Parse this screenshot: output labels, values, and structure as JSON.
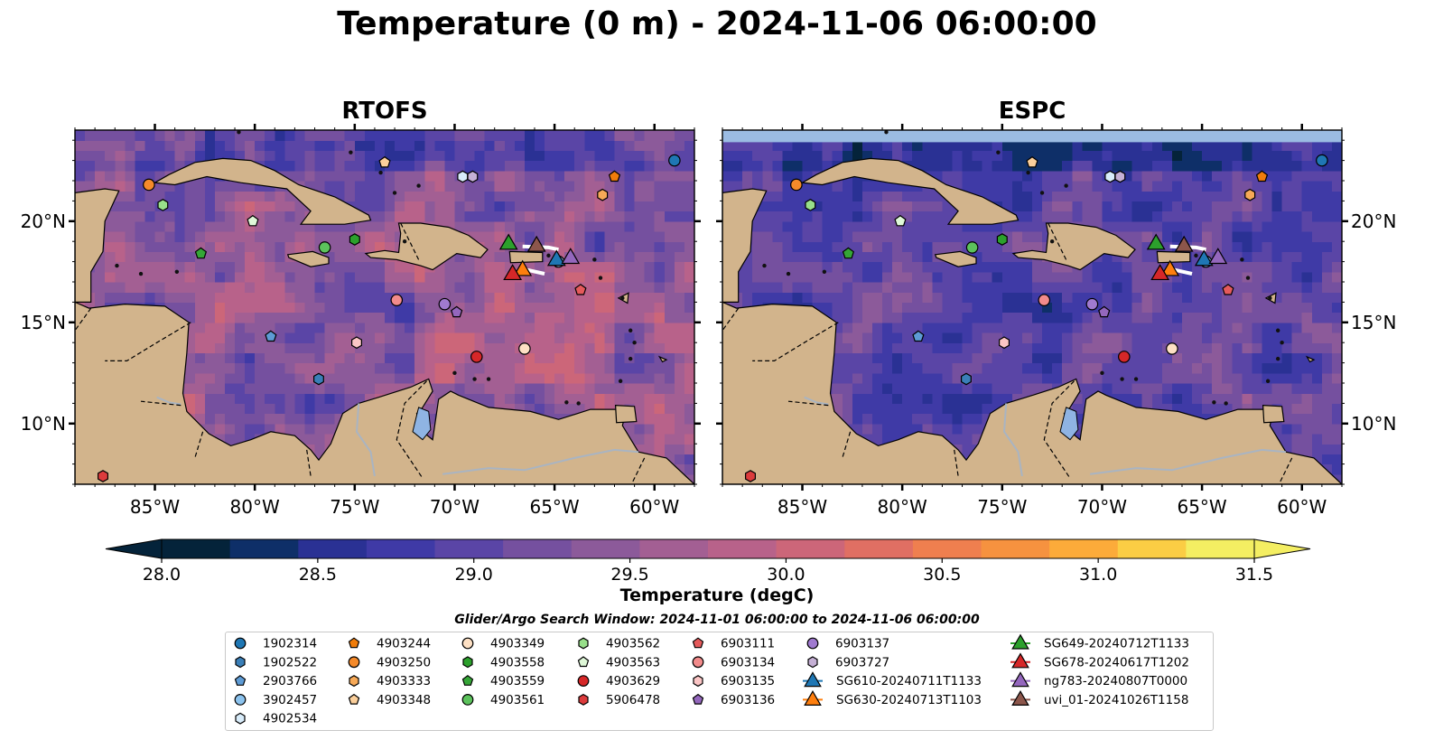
{
  "title": "Temperature (0 m) - 2024-11-06 06:00:00",
  "colors": {
    "land": "#d2b48c",
    "lake": "#8fb4e3",
    "river": "#a9b4c2",
    "nodata": "#9bbce3",
    "colormap_thermal": [
      "#04233a",
      "#0e2f68",
      "#2a3194",
      "#3f3aa6",
      "#5a45a6",
      "#75509f",
      "#8c5a9a",
      "#a35f93",
      "#b8628a",
      "#cc6679",
      "#e06f63",
      "#ef7f4f",
      "#f6923f",
      "#fcab3a",
      "#fbcd44",
      "#f4ee62"
    ]
  },
  "chart_data": [
    {
      "type": "heatmap",
      "title": "RTOFS",
      "field": "sea surface temperature",
      "xlim": [
        -89,
        -58
      ],
      "ylim": [
        7,
        24.5
      ],
      "xticks": [
        -85,
        -80,
        -75,
        -70,
        -65,
        -60
      ],
      "xtick_labels": [
        "85°W",
        "80°W",
        "75°W",
        "70°W",
        "65°W",
        "60°W"
      ],
      "yticks": [
        10,
        15,
        20
      ],
      "ytick_labels": [
        "10°N",
        "15°N",
        "20°N"
      ],
      "ytick_side": "left"
    },
    {
      "type": "heatmap",
      "title": "ESPC",
      "field": "sea surface temperature",
      "xlim": [
        -89,
        -58
      ],
      "ylim": [
        7,
        24.5
      ],
      "xticks": [
        -85,
        -80,
        -75,
        -70,
        -65,
        -60
      ],
      "xtick_labels": [
        "85°W",
        "80°W",
        "75°W",
        "70°W",
        "65°W",
        "60°W"
      ],
      "yticks": [
        10,
        15,
        20
      ],
      "ytick_labels": [
        "10°N",
        "15°N",
        "20°N"
      ],
      "ytick_side": "right"
    }
  ],
  "colorbar": {
    "label": "Temperature (degC)",
    "vmin": 28.0,
    "vmax": 31.5,
    "extend": "both",
    "ticks": [
      28.0,
      28.5,
      29.0,
      29.5,
      30.0,
      30.5,
      31.0,
      31.5
    ],
    "tick_labels": [
      "28.0",
      "28.5",
      "29.0",
      "29.5",
      "30.0",
      "30.5",
      "31.0",
      "31.5"
    ]
  },
  "legend": {
    "title": "Glider/Argo Search Window: 2024-11-01 06:00:00 to 2024-11-06 06:00:00",
    "placement": "bottom-center",
    "columns": [
      [
        {
          "label": "1902314",
          "marker": "circle",
          "color": "#1f77b4"
        },
        {
          "label": "1902522",
          "marker": "hexagon",
          "color": "#3a7fb8"
        },
        {
          "label": "2903766",
          "marker": "pentagon",
          "color": "#5d9bd5"
        },
        {
          "label": "3902457",
          "marker": "circle",
          "color": "#8cc3ee"
        },
        {
          "label": "4902534",
          "marker": "hexagon",
          "color": "#d8ecfa"
        }
      ],
      [
        {
          "label": "4903244",
          "marker": "pentagon",
          "color": "#f07c0a"
        },
        {
          "label": "4903250",
          "marker": "circle",
          "color": "#f58a2a"
        },
        {
          "label": "4903333",
          "marker": "hexagon",
          "color": "#f7a957"
        },
        {
          "label": "4903348",
          "marker": "pentagon",
          "color": "#fbcf9b"
        }
      ],
      [
        {
          "label": "4903349",
          "marker": "circle",
          "color": "#fde0c4"
        },
        {
          "label": "4903558",
          "marker": "hexagon",
          "color": "#2ca02c"
        },
        {
          "label": "4903559",
          "marker": "pentagon",
          "color": "#35a637"
        },
        {
          "label": "4903561",
          "marker": "circle",
          "color": "#5cc25c"
        }
      ],
      [
        {
          "label": "4903562",
          "marker": "hexagon",
          "color": "#98df8a"
        },
        {
          "label": "4903563",
          "marker": "pentagon",
          "color": "#dff8d8"
        },
        {
          "label": "4903629",
          "marker": "circle",
          "color": "#d62728"
        },
        {
          "label": "5906478",
          "marker": "hexagon",
          "color": "#dc3b3c"
        }
      ],
      [
        {
          "label": "6903111",
          "marker": "pentagon",
          "color": "#e55a5b"
        },
        {
          "label": "6903134",
          "marker": "circle",
          "color": "#f28b8b"
        },
        {
          "label": "6903135",
          "marker": "hexagon",
          "color": "#fbc5c5"
        },
        {
          "label": "6903136",
          "marker": "pentagon",
          "color": "#9467bd"
        }
      ],
      [
        {
          "label": "6903137",
          "marker": "circle",
          "color": "#a07ad0"
        },
        {
          "label": "6903727",
          "marker": "hexagon",
          "color": "#c5b0d5"
        },
        {
          "label": "SG610-20240711T1133",
          "marker": "triangle-line",
          "color": "#1f77b4"
        },
        {
          "label": "SG630-20240713T1103",
          "marker": "triangle-line",
          "color": "#ff7f0e"
        }
      ],
      [
        {
          "label": "SG649-20240712T1133",
          "marker": "triangle-line",
          "color": "#2ca02c"
        },
        {
          "label": "SG678-20240617T1202",
          "marker": "triangle-line",
          "color": "#d62728"
        },
        {
          "label": "ng783-20240807T0000",
          "marker": "triangle-line",
          "color": "#9467bd"
        },
        {
          "label": "uvi_01-20241026T1158",
          "marker": "triangle-line",
          "color": "#8c564b"
        }
      ]
    ]
  },
  "platforms": [
    {
      "id": "1902314",
      "lon": -59.0,
      "lat": 23.0
    },
    {
      "id": "1902522",
      "lon": -76.8,
      "lat": 12.2
    },
    {
      "id": "2903766",
      "lon": -79.2,
      "lat": 14.3
    },
    {
      "id": "3902457",
      "lon": -64.8,
      "lat": 18.0
    },
    {
      "id": "4902534",
      "lon": -69.6,
      "lat": 22.2
    },
    {
      "id": "4903244",
      "lon": -62.0,
      "lat": 22.2
    },
    {
      "id": "4903250",
      "lon": -85.3,
      "lat": 21.8
    },
    {
      "id": "4903333",
      "lon": -62.6,
      "lat": 21.3
    },
    {
      "id": "4903348",
      "lon": -73.5,
      "lat": 22.9
    },
    {
      "id": "4903349",
      "lon": -66.5,
      "lat": 13.7
    },
    {
      "id": "4903558",
      "lon": -75.0,
      "lat": 19.1
    },
    {
      "id": "4903559",
      "lon": -82.7,
      "lat": 18.4
    },
    {
      "id": "4903561",
      "lon": -76.5,
      "lat": 18.7
    },
    {
      "id": "4903562",
      "lon": -84.6,
      "lat": 20.8
    },
    {
      "id": "4903563",
      "lon": -80.1,
      "lat": 20.0
    },
    {
      "id": "4903629",
      "lon": -68.9,
      "lat": 13.3
    },
    {
      "id": "5906478",
      "lon": -87.6,
      "lat": 7.4
    },
    {
      "id": "6903111",
      "lon": -63.7,
      "lat": 16.6
    },
    {
      "id": "6903134",
      "lon": -72.9,
      "lat": 16.1
    },
    {
      "id": "6903135",
      "lon": -74.9,
      "lat": 14.0
    },
    {
      "id": "6903136",
      "lon": -69.9,
      "lat": 15.5
    },
    {
      "id": "6903137",
      "lon": -70.5,
      "lat": 15.9
    },
    {
      "id": "6903727",
      "lon": -69.1,
      "lat": 22.2
    },
    {
      "id": "SG610-20240711T1133",
      "lon": -64.9,
      "lat": 18.1
    },
    {
      "id": "SG630-20240713T1103",
      "lon": -66.6,
      "lat": 17.6
    },
    {
      "id": "SG649-20240712T1133",
      "lon": -67.3,
      "lat": 18.9
    },
    {
      "id": "SG678-20240617T1202",
      "lon": -67.1,
      "lat": 17.4
    },
    {
      "id": "ng783-20240807T0000",
      "lon": -64.2,
      "lat": 18.2
    },
    {
      "id": "uvi_01-20241026T1158",
      "lon": -65.9,
      "lat": 18.8
    }
  ]
}
